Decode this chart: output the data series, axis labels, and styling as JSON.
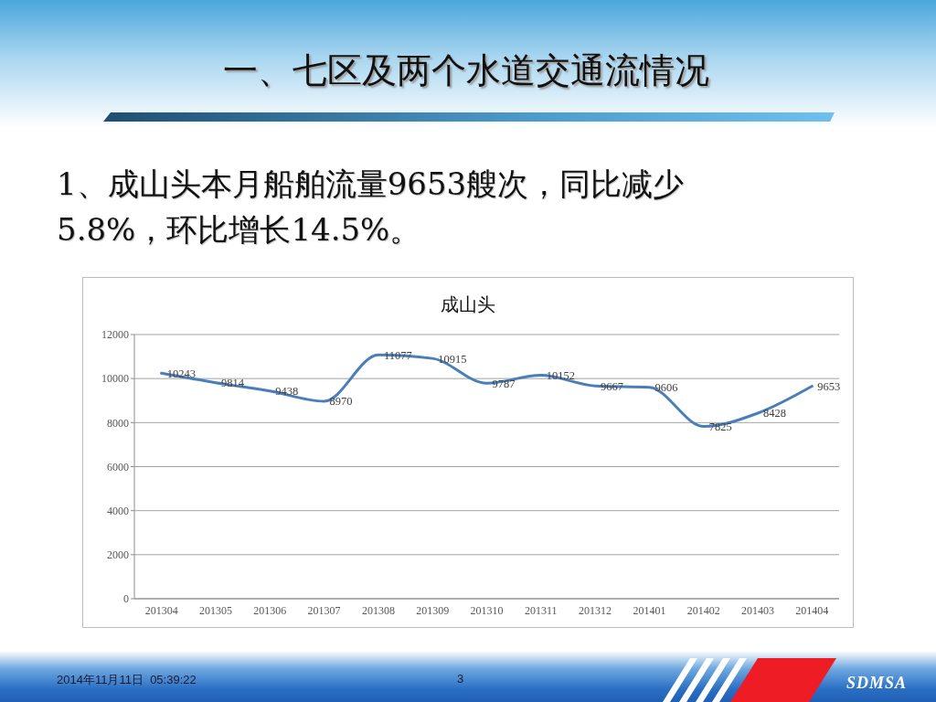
{
  "chart_data": {
    "type": "line",
    "title": "成山头",
    "categories": [
      "201304",
      "201305",
      "201306",
      "201307",
      "201308",
      "201309",
      "201310",
      "201311",
      "201312",
      "201401",
      "201402",
      "201403",
      "201404"
    ],
    "series": [
      {
        "color": "#4a7ebb",
        "values": [
          10243,
          9814,
          9438,
          8970,
          11077,
          10915,
          9787,
          10152,
          9667,
          9606,
          7825,
          8428,
          9653
        ]
      }
    ],
    "ylim": [
      0,
      12000
    ],
    "yticks": [
      0,
      2000,
      4000,
      6000,
      8000,
      10000,
      12000
    ],
    "grid": "y",
    "marker": "none",
    "line_style": "solid",
    "data_labels": true,
    "annotations": [
      "一、七区及两个水道交通流情况",
      "1、成山头本月船舶流量9653艘次，同比减少5.8%，环比增长14.5%。",
      "2014年11月11日  05:39:22",
      "3",
      "SDMSA"
    ]
  }
}
